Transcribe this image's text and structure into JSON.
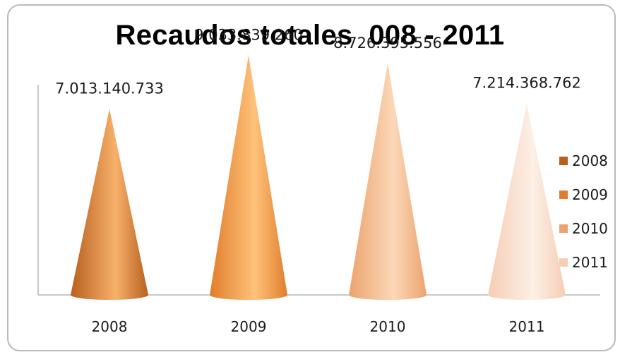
{
  "chart_data": {
    "type": "bar",
    "bar_shape": "cone",
    "title": "Recaudos totales  008 - 2011",
    "categories": [
      "2008",
      "2009",
      "2010",
      "2011"
    ],
    "values": [
      7013140733,
      9033839260,
      8726395556,
      7214368762
    ],
    "data_labels": [
      "7.013.140.733",
      "9.033.839.260",
      "8.726.395.556",
      "7.214.368.762"
    ],
    "xlabel": "",
    "ylabel": "",
    "ylim": [
      0,
      10000000000
    ],
    "grid": false,
    "legend": {
      "position": "right",
      "entries": [
        "2008",
        "2009",
        "2010",
        "2011"
      ]
    },
    "colors": [
      "#b8601e",
      "#e07e2c",
      "#eca36e",
      "#f5cdb5"
    ],
    "highlight_colors": [
      "#f7b16b",
      "#ffc27a",
      "#fbd8b8",
      "#fdf0e6"
    ]
  }
}
